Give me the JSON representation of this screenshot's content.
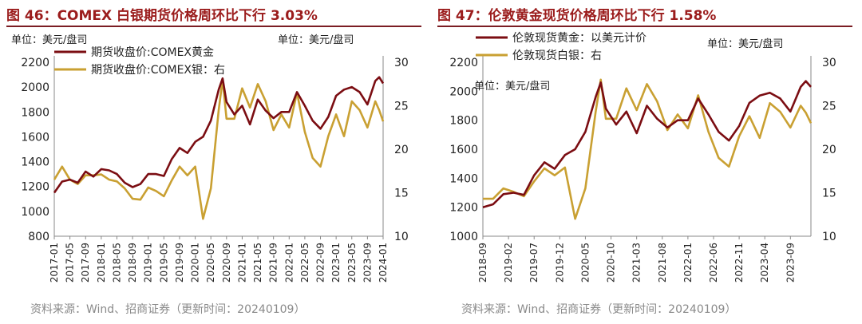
{
  "colors": {
    "gold": "#7b0d12",
    "silver": "#c9a032",
    "title": "#9b1c1c"
  },
  "source": "资料来源：Wind、招商证券（更新时间：20240109）",
  "chart_data": [
    {
      "type": "line",
      "title": "图 46：COMEX 白银期货价格周环比下行 3.03%",
      "unit_left": "单位：美元/盘司",
      "unit_right": "单位：美元/盘司",
      "ylim_left": [
        800,
        2200
      ],
      "yticks_left": [
        800,
        1000,
        1200,
        1400,
        1600,
        1800,
        2000,
        2200
      ],
      "ylim_right": [
        10,
        30
      ],
      "yticks_right": [
        10,
        15,
        20,
        25,
        30
      ],
      "x_range": [
        "2017-01",
        "2024-01"
      ],
      "xticks": [
        "2017-01",
        "2017-05",
        "2017-09",
        "2018-01",
        "2018-05",
        "2018-09",
        "2019-01",
        "2019-05",
        "2019-09",
        "2020-01",
        "2020-05",
        "2020-09",
        "2021-01",
        "2021-05",
        "2021-09",
        "2022-01",
        "2022-05",
        "2022-09",
        "2023-01",
        "2023-05",
        "2023-09",
        "2024-01"
      ],
      "legend": "top-left",
      "series": [
        {
          "name": "期货收盘价:COMEX黄金",
          "axis": "left",
          "points": [
            [
              "2017-01",
              1150
            ],
            [
              "2017-03",
              1240
            ],
            [
              "2017-05",
              1255
            ],
            [
              "2017-07",
              1230
            ],
            [
              "2017-09",
              1320
            ],
            [
              "2017-11",
              1280
            ],
            [
              "2018-01",
              1340
            ],
            [
              "2018-03",
              1330
            ],
            [
              "2018-05",
              1300
            ],
            [
              "2018-07",
              1230
            ],
            [
              "2018-09",
              1195
            ],
            [
              "2018-11",
              1220
            ],
            [
              "2019-01",
              1300
            ],
            [
              "2019-03",
              1300
            ],
            [
              "2019-05",
              1285
            ],
            [
              "2019-07",
              1420
            ],
            [
              "2019-09",
              1510
            ],
            [
              "2019-11",
              1470
            ],
            [
              "2020-01",
              1560
            ],
            [
              "2020-03",
              1600
            ],
            [
              "2020-05",
              1730
            ],
            [
              "2020-07",
              1980
            ],
            [
              "2020-08",
              2070
            ],
            [
              "2020-09",
              1880
            ],
            [
              "2020-11",
              1780
            ],
            [
              "2021-01",
              1850
            ],
            [
              "2021-03",
              1700
            ],
            [
              "2021-05",
              1900
            ],
            [
              "2021-07",
              1810
            ],
            [
              "2021-09",
              1750
            ],
            [
              "2021-11",
              1800
            ],
            [
              "2022-01",
              1800
            ],
            [
              "2022-03",
              1960
            ],
            [
              "2022-05",
              1850
            ],
            [
              "2022-07",
              1730
            ],
            [
              "2022-09",
              1665
            ],
            [
              "2022-11",
              1760
            ],
            [
              "2023-01",
              1930
            ],
            [
              "2023-03",
              1980
            ],
            [
              "2023-05",
              2000
            ],
            [
              "2023-07",
              1960
            ],
            [
              "2023-09",
              1860
            ],
            [
              "2023-11",
              2050
            ],
            [
              "2023-12",
              2080
            ],
            [
              "2024-01",
              2030
            ]
          ]
        },
        {
          "name": "期货收盘价:COMEX银：右",
          "axis": "right",
          "points": [
            [
              "2017-01",
              16.5
            ],
            [
              "2017-03",
              18.0
            ],
            [
              "2017-05",
              16.5
            ],
            [
              "2017-07",
              16.0
            ],
            [
              "2017-09",
              17.0
            ],
            [
              "2017-11",
              17.0
            ],
            [
              "2018-01",
              17.1
            ],
            [
              "2018-03",
              16.5
            ],
            [
              "2018-05",
              16.3
            ],
            [
              "2018-07",
              15.5
            ],
            [
              "2018-09",
              14.3
            ],
            [
              "2018-11",
              14.2
            ],
            [
              "2019-01",
              15.6
            ],
            [
              "2019-03",
              15.2
            ],
            [
              "2019-05",
              14.6
            ],
            [
              "2019-07",
              16.4
            ],
            [
              "2019-09",
              18.0
            ],
            [
              "2019-11",
              17.0
            ],
            [
              "2020-01",
              18.0
            ],
            [
              "2020-03",
              12.0
            ],
            [
              "2020-05",
              15.5
            ],
            [
              "2020-07",
              24.5
            ],
            [
              "2020-08",
              28.0
            ],
            [
              "2020-09",
              23.5
            ],
            [
              "2020-11",
              23.5
            ],
            [
              "2021-01",
              27.0
            ],
            [
              "2021-03",
              24.8
            ],
            [
              "2021-05",
              27.5
            ],
            [
              "2021-07",
              25.5
            ],
            [
              "2021-09",
              22.2
            ],
            [
              "2021-11",
              24.0
            ],
            [
              "2022-01",
              22.5
            ],
            [
              "2022-03",
              26.5
            ],
            [
              "2022-05",
              22.0
            ],
            [
              "2022-07",
              19.0
            ],
            [
              "2022-09",
              18.0
            ],
            [
              "2022-11",
              21.5
            ],
            [
              "2023-01",
              24.0
            ],
            [
              "2023-03",
              21.5
            ],
            [
              "2023-05",
              25.5
            ],
            [
              "2023-07",
              24.5
            ],
            [
              "2023-09",
              22.5
            ],
            [
              "2023-11",
              25.5
            ],
            [
              "2023-12",
              24.5
            ],
            [
              "2024-01",
              23.2
            ]
          ]
        }
      ]
    },
    {
      "type": "line",
      "title": "图 47：伦敦黄金现货价格周环比下行 1.58%",
      "unit_left": "单位：美元/盘司",
      "unit_right": "单位：美元/盘司",
      "ylim_left": [
        1000,
        2200
      ],
      "yticks_left": [
        1000,
        1200,
        1400,
        1600,
        1800,
        2000,
        2200
      ],
      "ylim_right": [
        10,
        30
      ],
      "yticks_right": [
        10,
        15,
        20,
        25,
        30
      ],
      "x_range": [
        "2018-09",
        "2024-01"
      ],
      "xticks": [
        "2018-09",
        "2019-02",
        "2019-07",
        "2019-12",
        "2020-05",
        "2020-10",
        "2021-03",
        "2021-08",
        "2022-01",
        "2022-06",
        "2022-11",
        "2023-04",
        "2023-09"
      ],
      "legend": "top-left",
      "series": [
        {
          "name": "伦敦现货黄金：以美元计价",
          "axis": "left",
          "points": [
            [
              "2018-09",
              1200
            ],
            [
              "2018-11",
              1220
            ],
            [
              "2019-01",
              1290
            ],
            [
              "2019-03",
              1300
            ],
            [
              "2019-05",
              1285
            ],
            [
              "2019-07",
              1420
            ],
            [
              "2019-09",
              1510
            ],
            [
              "2019-11",
              1465
            ],
            [
              "2020-01",
              1560
            ],
            [
              "2020-03",
              1600
            ],
            [
              "2020-05",
              1720
            ],
            [
              "2020-07",
              1960
            ],
            [
              "2020-08",
              2060
            ],
            [
              "2020-09",
              1880
            ],
            [
              "2020-11",
              1770
            ],
            [
              "2021-01",
              1860
            ],
            [
              "2021-03",
              1710
            ],
            [
              "2021-05",
              1900
            ],
            [
              "2021-07",
              1810
            ],
            [
              "2021-09",
              1750
            ],
            [
              "2021-11",
              1800
            ],
            [
              "2022-01",
              1800
            ],
            [
              "2022-03",
              1950
            ],
            [
              "2022-05",
              1840
            ],
            [
              "2022-07",
              1720
            ],
            [
              "2022-09",
              1660
            ],
            [
              "2022-11",
              1760
            ],
            [
              "2023-01",
              1920
            ],
            [
              "2023-03",
              1970
            ],
            [
              "2023-05",
              1990
            ],
            [
              "2023-07",
              1950
            ],
            [
              "2023-09",
              1860
            ],
            [
              "2023-11",
              2030
            ],
            [
              "2023-12",
              2070
            ],
            [
              "2024-01",
              2030
            ]
          ]
        },
        {
          "name": "伦敦现货白银：右",
          "axis": "right",
          "points": [
            [
              "2018-09",
              14.3
            ],
            [
              "2018-11",
              14.3
            ],
            [
              "2019-01",
              15.5
            ],
            [
              "2019-03",
              15.1
            ],
            [
              "2019-05",
              14.6
            ],
            [
              "2019-07",
              16.3
            ],
            [
              "2019-09",
              17.8
            ],
            [
              "2019-11",
              17.0
            ],
            [
              "2020-01",
              17.9
            ],
            [
              "2020-03",
              12.0
            ],
            [
              "2020-05",
              15.5
            ],
            [
              "2020-07",
              24.3
            ],
            [
              "2020-08",
              28.0
            ],
            [
              "2020-09",
              23.5
            ],
            [
              "2020-11",
              23.5
            ],
            [
              "2021-01",
              27.0
            ],
            [
              "2021-03",
              24.5
            ],
            [
              "2021-05",
              27.5
            ],
            [
              "2021-07",
              25.5
            ],
            [
              "2021-09",
              22.2
            ],
            [
              "2021-11",
              24.0
            ],
            [
              "2022-01",
              22.4
            ],
            [
              "2022-03",
              26.2
            ],
            [
              "2022-05",
              22.0
            ],
            [
              "2022-07",
              19.0
            ],
            [
              "2022-09",
              18.0
            ],
            [
              "2022-11",
              21.5
            ],
            [
              "2023-01",
              23.8
            ],
            [
              "2023-03",
              21.3
            ],
            [
              "2023-05",
              25.3
            ],
            [
              "2023-07",
              24.3
            ],
            [
              "2023-09",
              22.5
            ],
            [
              "2023-11",
              25.0
            ],
            [
              "2023-12",
              24.2
            ],
            [
              "2024-01",
              23.0
            ]
          ]
        }
      ]
    }
  ]
}
